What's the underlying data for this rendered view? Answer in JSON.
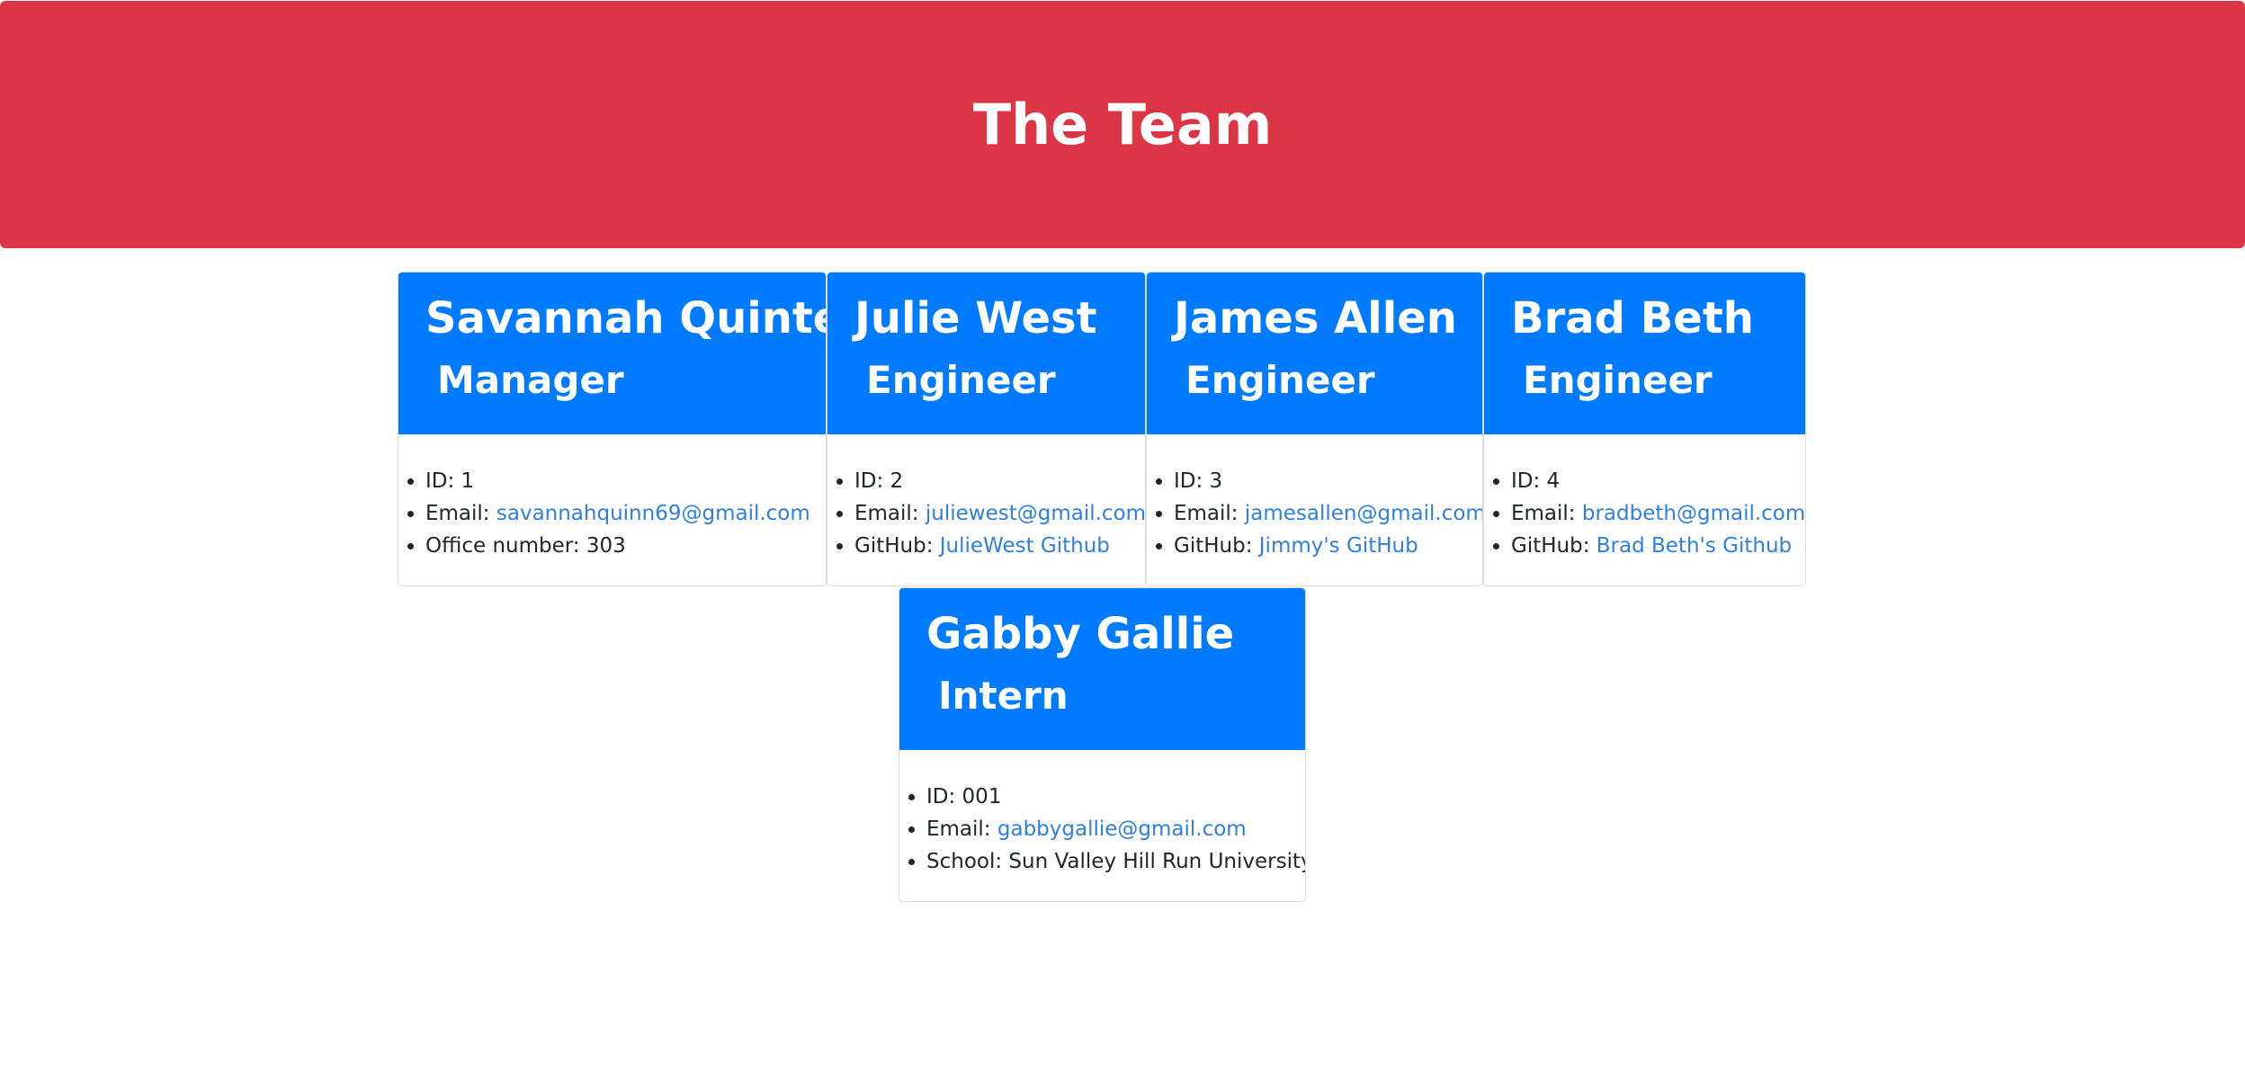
{
  "header": {
    "title": "The Team"
  },
  "members": [
    {
      "name": "Savannah Quintero",
      "role": "Manager",
      "id_label": "ID: 1",
      "email_label": "Email: ",
      "email": "savannahquinn69@gmail.com",
      "extra_label": "Office number: 303",
      "extra_link": ""
    },
    {
      "name": "Julie West",
      "role": "Engineer",
      "id_label": "ID: 2",
      "email_label": "Email: ",
      "email": "juliewest@gmail.com",
      "extra_label": "GitHub: ",
      "extra_link": "JulieWest Github"
    },
    {
      "name": "James Allen",
      "role": "Engineer",
      "id_label": "ID: 3",
      "email_label": "Email: ",
      "email": "jamesallen@gmail.com",
      "extra_label": "GitHub: ",
      "extra_link": "Jimmy's GitHub"
    },
    {
      "name": "Brad Beth",
      "role": "Engineer",
      "id_label": "ID: 4",
      "email_label": "Email: ",
      "email": "bradbeth@gmail.com",
      "extra_label": "GitHub: ",
      "extra_link": "Brad Beth's Github"
    },
    {
      "name": "Gabby Gallie",
      "role": "Intern",
      "id_label": "ID: 001",
      "email_label": "Email: ",
      "email": "gabbygallie@gmail.com",
      "extra_label": "School: Sun Valley Hill Run University",
      "extra_link": ""
    }
  ],
  "colors": {
    "banner": "#dc3545",
    "card_header": "#007bff",
    "link": "#2f7fe0"
  }
}
